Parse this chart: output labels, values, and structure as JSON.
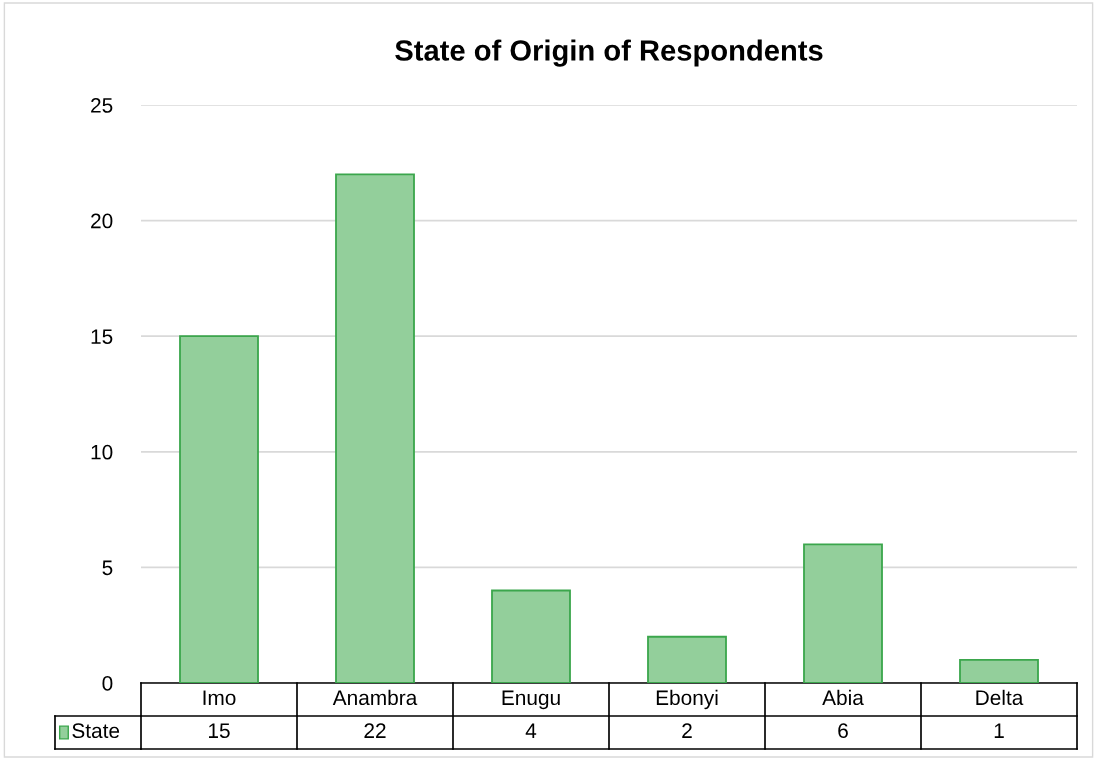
{
  "chart_data": {
    "type": "bar",
    "title": "State of Origin of Respondents",
    "categories": [
      "Imo",
      "Anambra",
      "Enugu",
      "Ebonyi",
      "Abia",
      "Delta"
    ],
    "series": [
      {
        "name": "State",
        "color": "#93cf9b",
        "values": [
          15,
          22,
          4,
          2,
          6,
          1
        ]
      }
    ],
    "ylim": [
      0,
      25
    ],
    "yticks": [
      0,
      5,
      10,
      15,
      20,
      25
    ],
    "grid": "y",
    "legend": "bottom",
    "data_labels": true
  }
}
